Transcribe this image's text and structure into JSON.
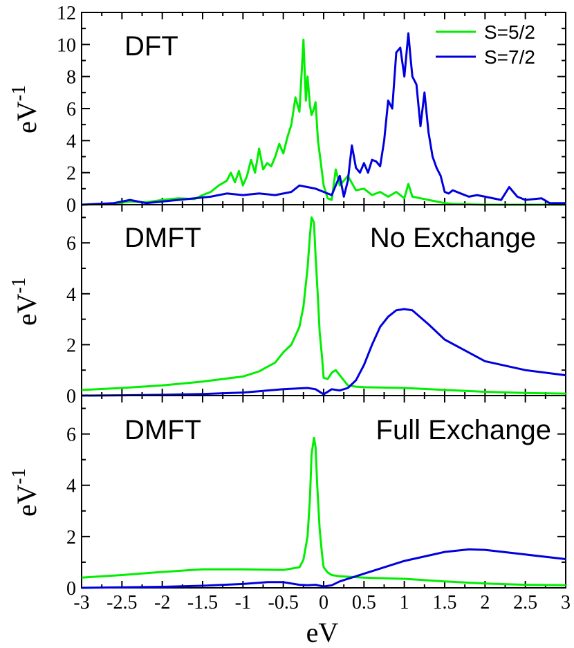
{
  "chart_data": [
    {
      "type": "line",
      "panel": "top",
      "title": "DFT",
      "subtitle": "",
      "ylabel": "eV",
      "ylabel_superscript": "-1",
      "ylim": [
        0,
        12
      ],
      "yticks": [
        "0",
        "2",
        "4",
        "6",
        "8",
        "10",
        "12"
      ],
      "xlim": [
        -3,
        3
      ],
      "legend": {
        "position": "top-right",
        "entries": [
          "S=5/2",
          "S=7/2"
        ]
      },
      "series": [
        {
          "name": "S=5/2",
          "color": "#00ee00",
          "x": [
            -3,
            -2.6,
            -2.4,
            -2.2,
            -2.0,
            -1.8,
            -1.6,
            -1.5,
            -1.4,
            -1.3,
            -1.2,
            -1.15,
            -1.1,
            -1.05,
            -1.0,
            -0.95,
            -0.9,
            -0.85,
            -0.8,
            -0.75,
            -0.7,
            -0.65,
            -0.6,
            -0.55,
            -0.5,
            -0.45,
            -0.4,
            -0.35,
            -0.3,
            -0.27,
            -0.25,
            -0.22,
            -0.2,
            -0.17,
            -0.15,
            -0.12,
            -0.1,
            -0.07,
            -0.05,
            -0.02,
            0.0,
            0.05,
            0.1,
            0.15,
            0.2,
            0.3,
            0.4,
            0.5,
            0.6,
            0.7,
            0.8,
            0.9,
            1.0,
            1.05,
            1.1,
            1.2,
            1.3,
            1.4,
            1.5,
            1.6,
            1.8,
            2.0,
            2.5,
            3.0
          ],
          "y": [
            0,
            0.05,
            0.2,
            0.15,
            0.3,
            0.4,
            0.35,
            0.6,
            0.8,
            1.2,
            1.5,
            2.0,
            1.4,
            2.1,
            1.2,
            1.8,
            2.8,
            2.0,
            3.5,
            2.2,
            2.6,
            2.4,
            3.0,
            3.8,
            3.2,
            4.2,
            5.0,
            6.7,
            5.8,
            8.5,
            10.3,
            6.5,
            8.0,
            6.2,
            5.6,
            6.0,
            6.4,
            4.0,
            3.2,
            2.0,
            1.2,
            0.4,
            0.3,
            2.2,
            1.2,
            1.8,
            0.9,
            1.0,
            0.6,
            0.8,
            0.5,
            0.8,
            0.4,
            1.3,
            0.5,
            0.4,
            0.3,
            0.2,
            0.1,
            0.05,
            0.02,
            0,
            0,
            0
          ]
        },
        {
          "name": "S=7/2",
          "color": "#0000dd",
          "x": [
            -3,
            -2.6,
            -2.4,
            -2.2,
            -2.0,
            -1.8,
            -1.6,
            -1.4,
            -1.2,
            -1.0,
            -0.8,
            -0.6,
            -0.4,
            -0.3,
            -0.2,
            -0.1,
            0.0,
            0.1,
            0.2,
            0.25,
            0.3,
            0.35,
            0.4,
            0.45,
            0.5,
            0.55,
            0.6,
            0.65,
            0.7,
            0.75,
            0.8,
            0.85,
            0.9,
            0.95,
            1.0,
            1.05,
            1.08,
            1.1,
            1.15,
            1.2,
            1.25,
            1.3,
            1.35,
            1.4,
            1.45,
            1.5,
            1.55,
            1.6,
            1.7,
            1.8,
            1.9,
            2.0,
            2.2,
            2.3,
            2.4,
            2.5,
            2.7,
            2.8,
            3.0
          ],
          "y": [
            0,
            0.1,
            0.3,
            0.1,
            0.2,
            0.3,
            0.4,
            0.5,
            0.7,
            0.6,
            0.7,
            0.6,
            0.8,
            1.2,
            1.1,
            1.0,
            0.8,
            0.6,
            1.8,
            0.5,
            1.5,
            3.7,
            2.3,
            2.0,
            2.6,
            2.0,
            2.8,
            2.7,
            2.4,
            4.0,
            6.5,
            6.0,
            9.5,
            9.8,
            8.0,
            10.7,
            9.0,
            8.0,
            7.5,
            4.9,
            7.0,
            4.5,
            3.0,
            2.3,
            1.8,
            0.8,
            0.7,
            0.9,
            0.7,
            0.5,
            0.6,
            0.5,
            0.3,
            1.1,
            0.5,
            0.3,
            0.4,
            0.1,
            0.1
          ]
        }
      ]
    },
    {
      "type": "line",
      "panel": "middle",
      "title": "DMFT",
      "subtitle": "No Exchange",
      "ylabel": "eV",
      "ylabel_superscript": "-1",
      "ylim": [
        0,
        7.5
      ],
      "yticks": [
        "0",
        "2",
        "4",
        "6"
      ],
      "xlim": [
        -3,
        3
      ],
      "series": [
        {
          "name": "S=5/2",
          "color": "#00ee00",
          "x": [
            -3,
            -2.5,
            -2.0,
            -1.5,
            -1.0,
            -0.8,
            -0.6,
            -0.5,
            -0.4,
            -0.3,
            -0.25,
            -0.2,
            -0.17,
            -0.15,
            -0.12,
            -0.1,
            -0.07,
            -0.05,
            -0.02,
            0.0,
            0.05,
            0.1,
            0.15,
            0.2,
            0.3,
            0.4,
            0.5,
            1.0,
            1.5,
            2.0,
            2.5,
            3.0
          ],
          "y": [
            0.22,
            0.3,
            0.4,
            0.55,
            0.75,
            0.95,
            1.3,
            1.7,
            2.0,
            2.7,
            3.5,
            5.0,
            6.3,
            7.0,
            6.8,
            5.5,
            3.8,
            2.5,
            1.5,
            0.7,
            0.65,
            0.9,
            1.0,
            0.8,
            0.4,
            0.35,
            0.33,
            0.3,
            0.22,
            0.15,
            0.1,
            0.08
          ]
        },
        {
          "name": "S=7/2",
          "color": "#0000dd",
          "x": [
            -3,
            -2.5,
            -2.0,
            -1.5,
            -1.0,
            -0.5,
            -0.2,
            -0.1,
            0.0,
            0.1,
            0.2,
            0.3,
            0.4,
            0.5,
            0.6,
            0.7,
            0.8,
            0.9,
            1.0,
            1.1,
            1.3,
            1.5,
            2.0,
            2.5,
            3.0
          ],
          "y": [
            0.0,
            0.01,
            0.03,
            0.06,
            0.12,
            0.25,
            0.3,
            0.25,
            0.05,
            0.25,
            0.2,
            0.3,
            0.6,
            1.2,
            2.0,
            2.7,
            3.1,
            3.35,
            3.4,
            3.35,
            2.8,
            2.2,
            1.35,
            1.0,
            0.8
          ]
        }
      ]
    },
    {
      "type": "line",
      "panel": "bottom",
      "title": "DMFT",
      "subtitle": "Full Exchange",
      "ylabel": "eV",
      "ylabel_superscript": "-1",
      "ylim": [
        0,
        7.5
      ],
      "yticks": [
        "0",
        "2",
        "4",
        "6"
      ],
      "xlim": [
        -3,
        3
      ],
      "xlabel": "eV",
      "xticks": [
        "-3",
        "-2.5",
        "-2",
        "-1.5",
        "-1",
        "-0.5",
        "0",
        "0.5",
        "1",
        "1.5",
        "2",
        "2.5",
        "3"
      ],
      "series": [
        {
          "name": "S=5/2",
          "color": "#00ee00",
          "x": [
            -3,
            -2.5,
            -2.0,
            -1.5,
            -1.0,
            -0.5,
            -0.3,
            -0.25,
            -0.2,
            -0.17,
            -0.15,
            -0.12,
            -0.1,
            -0.08,
            -0.05,
            -0.02,
            0.0,
            0.05,
            0.1,
            0.2,
            0.5,
            1.0,
            1.5,
            2.0,
            2.5,
            3.0
          ],
          "y": [
            0.4,
            0.5,
            0.62,
            0.72,
            0.72,
            0.7,
            0.8,
            1.1,
            2.0,
            3.5,
            5.2,
            5.85,
            5.5,
            4.0,
            2.3,
            1.3,
            0.8,
            0.6,
            0.5,
            0.45,
            0.4,
            0.35,
            0.25,
            0.17,
            0.12,
            0.1
          ]
        },
        {
          "name": "S=7/2",
          "color": "#0000dd",
          "x": [
            -3,
            -2.5,
            -2.0,
            -1.5,
            -1.0,
            -0.7,
            -0.5,
            -0.3,
            -0.2,
            -0.1,
            0.0,
            0.1,
            0.2,
            0.5,
            1.0,
            1.5,
            1.8,
            2.0,
            2.5,
            3.0
          ],
          "y": [
            0.0,
            0.02,
            0.04,
            0.08,
            0.15,
            0.22,
            0.22,
            0.12,
            0.1,
            0.12,
            0.05,
            0.1,
            0.25,
            0.55,
            1.05,
            1.4,
            1.5,
            1.48,
            1.3,
            1.12
          ]
        }
      ]
    }
  ]
}
